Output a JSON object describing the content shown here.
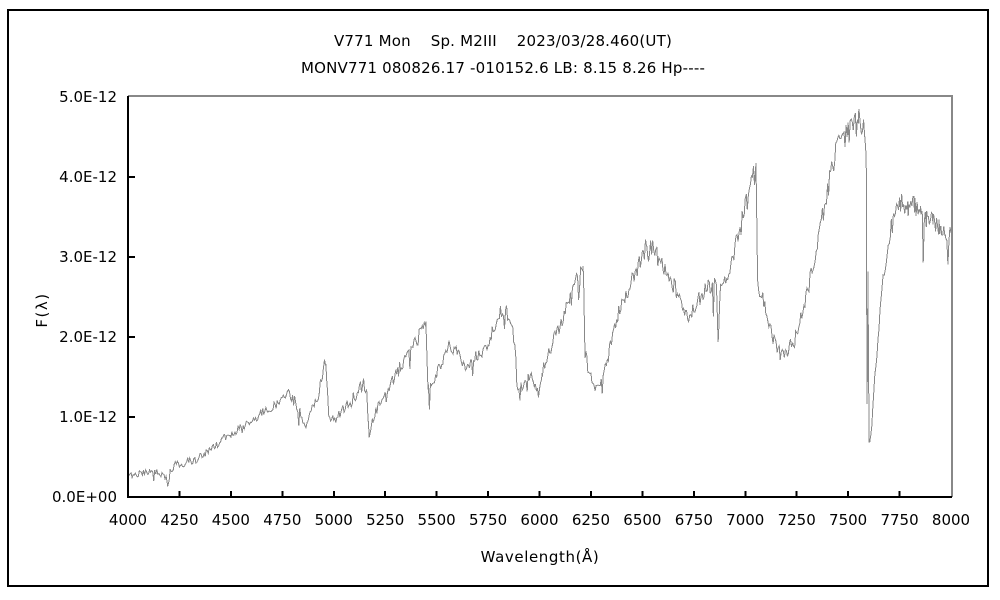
{
  "figure": {
    "background_color": "#ffffff",
    "border_color": "#000000",
    "text_color": "#000000"
  },
  "chart_data": {
    "type": "line",
    "title": "V771 Mon    Sp. M2III    2023/03/28.460(UT)",
    "subtitle": "MONV771 080826.17 -010152.6 LB: 8.15 8.26 Hp----",
    "xlabel": "Wavelength(Å)",
    "ylabel": "F(λ)",
    "xlim": [
      4000,
      8000
    ],
    "x_ticks": [
      4000,
      4250,
      4500,
      4750,
      5000,
      5250,
      5500,
      5750,
      6000,
      6250,
      6500,
      6750,
      7000,
      7250,
      7500,
      7750,
      8000
    ],
    "ylim": [
      0,
      5e-12
    ],
    "y_ticks": [
      {
        "value": 0,
        "label": "0.0E+00"
      },
      {
        "value": 1e-12,
        "label": "1.0E-12"
      },
      {
        "value": 2e-12,
        "label": "2.0E-12"
      },
      {
        "value": 3e-12,
        "label": "3.0E-12"
      },
      {
        "value": 4e-12,
        "label": "4.0E-12"
      },
      {
        "value": 5e-12,
        "label": "5.0E-12"
      }
    ],
    "grid": false,
    "legend": false,
    "line_color": "#888888",
    "axis_color": "#000000",
    "box_color": "#888888",
    "series": [
      {
        "name": "V771 Mon spectrum",
        "x_unit": "Angstrom",
        "y_unit_multiplier": 1e-12,
        "points": [
          [
            4000,
            0.27
          ],
          [
            4060,
            0.29
          ],
          [
            4110,
            0.33
          ],
          [
            4150,
            0.3
          ],
          [
            4185,
            0.24
          ],
          [
            4193,
            0.12
          ],
          [
            4205,
            0.32
          ],
          [
            4235,
            0.42
          ],
          [
            4265,
            0.38
          ],
          [
            4290,
            0.46
          ],
          [
            4320,
            0.44
          ],
          [
            4360,
            0.52
          ],
          [
            4410,
            0.62
          ],
          [
            4460,
            0.72
          ],
          [
            4510,
            0.8
          ],
          [
            4560,
            0.88
          ],
          [
            4610,
            0.97
          ],
          [
            4660,
            1.06
          ],
          [
            4705,
            1.12
          ],
          [
            4745,
            1.24
          ],
          [
            4780,
            1.3
          ],
          [
            4820,
            1.16
          ],
          [
            4860,
            0.88
          ],
          [
            4890,
            1.08
          ],
          [
            4925,
            1.28
          ],
          [
            4950,
            1.6
          ],
          [
            4962,
            1.7
          ],
          [
            4976,
            1.0
          ],
          [
            5005,
            0.96
          ],
          [
            5035,
            1.06
          ],
          [
            5070,
            1.16
          ],
          [
            5105,
            1.27
          ],
          [
            5140,
            1.46
          ],
          [
            5160,
            1.32
          ],
          [
            5172,
            0.73
          ],
          [
            5188,
            0.97
          ],
          [
            5225,
            1.17
          ],
          [
            5265,
            1.32
          ],
          [
            5305,
            1.56
          ],
          [
            5345,
            1.72
          ],
          [
            5385,
            1.86
          ],
          [
            5425,
            2.06
          ],
          [
            5448,
            2.16
          ],
          [
            5458,
            1.36
          ],
          [
            5485,
            1.46
          ],
          [
            5525,
            1.66
          ],
          [
            5565,
            1.92
          ],
          [
            5605,
            1.78
          ],
          [
            5645,
            1.62
          ],
          [
            5685,
            1.76
          ],
          [
            5725,
            1.82
          ],
          [
            5765,
            2.02
          ],
          [
            5805,
            2.28
          ],
          [
            5835,
            2.38
          ],
          [
            5865,
            2.12
          ],
          [
            5882,
            1.92
          ],
          [
            5890,
            1.36
          ],
          [
            5925,
            1.42
          ],
          [
            5960,
            1.52
          ],
          [
            5995,
            1.3
          ],
          [
            6012,
            1.56
          ],
          [
            6045,
            1.82
          ],
          [
            6085,
            2.06
          ],
          [
            6125,
            2.32
          ],
          [
            6165,
            2.56
          ],
          [
            6195,
            2.86
          ],
          [
            6212,
            2.96
          ],
          [
            6222,
            1.78
          ],
          [
            6245,
            1.52
          ],
          [
            6285,
            1.36
          ],
          [
            6325,
            1.66
          ],
          [
            6365,
            2.12
          ],
          [
            6405,
            2.46
          ],
          [
            6445,
            2.66
          ],
          [
            6485,
            2.92
          ],
          [
            6522,
            3.16
          ],
          [
            6560,
            3.06
          ],
          [
            6600,
            2.88
          ],
          [
            6640,
            2.72
          ],
          [
            6680,
            2.48
          ],
          [
            6720,
            2.26
          ],
          [
            6760,
            2.42
          ],
          [
            6800,
            2.56
          ],
          [
            6835,
            2.66
          ],
          [
            6860,
            2.62
          ],
          [
            6868,
            1.92
          ],
          [
            6880,
            2.56
          ],
          [
            6905,
            2.72
          ],
          [
            6945,
            3.06
          ],
          [
            6985,
            3.46
          ],
          [
            7025,
            3.88
          ],
          [
            7052,
            4.1
          ],
          [
            7060,
            2.66
          ],
          [
            7085,
            2.46
          ],
          [
            7115,
            2.16
          ],
          [
            7145,
            1.92
          ],
          [
            7175,
            1.76
          ],
          [
            7205,
            1.82
          ],
          [
            7235,
            1.96
          ],
          [
            7275,
            2.3
          ],
          [
            7320,
            2.75
          ],
          [
            7360,
            3.3
          ],
          [
            7400,
            3.85
          ],
          [
            7435,
            4.25
          ],
          [
            7460,
            4.4
          ],
          [
            7490,
            4.52
          ],
          [
            7520,
            4.6
          ],
          [
            7552,
            4.7
          ],
          [
            7580,
            4.55
          ],
          [
            7588,
            4.4
          ],
          [
            7592,
            1.1
          ],
          [
            7596,
            2.9
          ],
          [
            7602,
            0.65
          ],
          [
            7615,
            0.85
          ],
          [
            7630,
            1.55
          ],
          [
            7645,
            1.95
          ],
          [
            7660,
            2.48
          ],
          [
            7675,
            2.82
          ],
          [
            7695,
            3.16
          ],
          [
            7715,
            3.42
          ],
          [
            7735,
            3.56
          ],
          [
            7762,
            3.72
          ],
          [
            7792,
            3.62
          ],
          [
            7822,
            3.66
          ],
          [
            7852,
            3.56
          ],
          [
            7882,
            3.48
          ],
          [
            7912,
            3.42
          ],
          [
            7942,
            3.36
          ],
          [
            7972,
            3.3
          ],
          [
            8000,
            3.26
          ]
        ]
      }
    ],
    "noise": {
      "seed": 20230328,
      "sample_step": 5,
      "jitter_base": 0.03,
      "jitter_scale": 0.03,
      "spike_prob": 0.05,
      "spike_base": 0.08,
      "spike_scale": 0.12
    }
  }
}
